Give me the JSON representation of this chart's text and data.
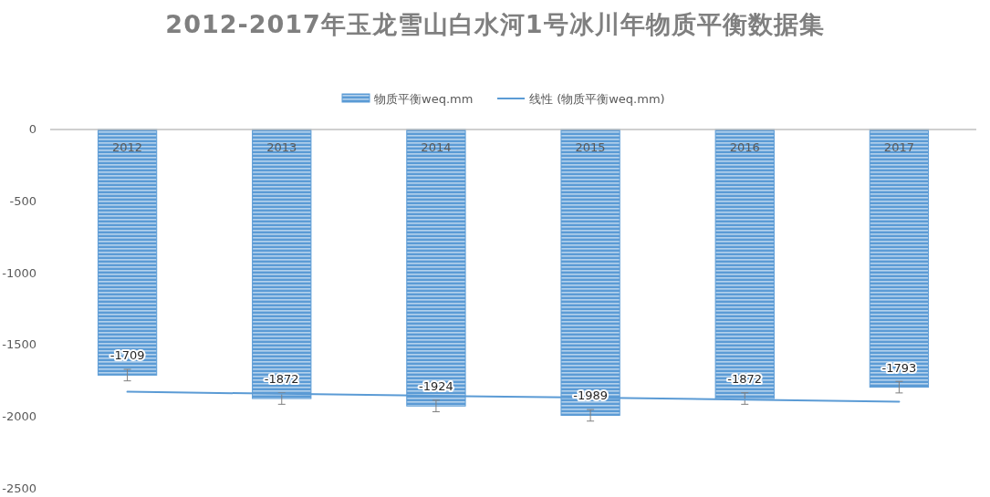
{
  "chart_data": {
    "type": "bar",
    "title": "2012-2017年玉龙雪山白水河1号冰川年物质平衡数据集",
    "categories": [
      "2012",
      "2013",
      "2014",
      "2015",
      "2016",
      "2017"
    ],
    "series": [
      {
        "name": "物质平衡weq.mm",
        "color": "#5b9bd5",
        "values": [
          -1709,
          -1872,
          -1924,
          -1989,
          -1872,
          -1793
        ],
        "errors": [
          40,
          40,
          40,
          40,
          40,
          40
        ],
        "value_labels": [
          "-1709",
          "-1872",
          "-1924",
          "-1989",
          "-1872",
          "-1793"
        ]
      },
      {
        "name": "线性 (物质平衡weq.mm)",
        "type": "line",
        "color": "#5b9bd5",
        "values": [
          -1825,
          -1839,
          -1853,
          -1866,
          -1880,
          -1894
        ]
      }
    ],
    "ylim": [
      -2500,
      0
    ],
    "yticks": [
      -2500,
      -2000,
      -1500,
      -1000,
      -500,
      0
    ],
    "legend": "top",
    "grid": false
  }
}
